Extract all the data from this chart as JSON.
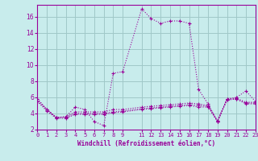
{
  "xlabel": "Windchill (Refroidissement éolien,°C)",
  "bg_color": "#c8ecec",
  "grid_color": "#a0c8c8",
  "line_color": "#990099",
  "xlim": [
    0,
    23
  ],
  "ylim": [
    2,
    17.5
  ],
  "yticks": [
    2,
    4,
    6,
    8,
    10,
    12,
    14,
    16
  ],
  "xtick_positions": [
    0,
    1,
    2,
    3,
    4,
    5,
    6,
    7,
    8,
    9,
    11,
    12,
    13,
    14,
    15,
    16,
    17,
    18,
    19,
    20,
    21,
    22,
    23
  ],
  "xtick_labels": [
    "0",
    "1",
    "2",
    "3",
    "4",
    "5",
    "6",
    "7",
    "8",
    "9",
    "11",
    "12",
    "13",
    "14",
    "15",
    "16",
    "17",
    "18",
    "19",
    "20",
    "21",
    "22",
    "23"
  ],
  "series": [
    {
      "x": [
        0,
        1,
        2,
        3,
        4,
        5,
        6,
        7,
        8,
        9,
        11,
        12,
        13,
        14,
        15,
        16,
        17,
        18,
        19,
        20,
        21,
        22,
        23
      ],
      "y": [
        5.8,
        4.5,
        3.5,
        3.6,
        4.8,
        4.5,
        3.0,
        2.5,
        9.0,
        9.2,
        17.0,
        15.8,
        15.2,
        15.5,
        15.5,
        15.2,
        7.0,
        5.2,
        3.0,
        5.8,
        6.0,
        6.8,
        5.5
      ]
    },
    {
      "x": [
        0,
        1,
        2,
        3,
        4,
        5,
        6,
        7,
        8,
        9,
        11,
        12,
        13,
        14,
        15,
        16,
        17,
        18,
        19,
        20,
        21,
        22,
        23
      ],
      "y": [
        5.8,
        4.5,
        3.5,
        3.6,
        4.2,
        4.2,
        4.2,
        4.2,
        4.5,
        4.5,
        4.8,
        4.9,
        5.0,
        5.1,
        5.2,
        5.3,
        5.2,
        5.0,
        3.1,
        5.8,
        5.9,
        5.4,
        5.4
      ]
    },
    {
      "x": [
        0,
        1,
        2,
        3,
        4,
        5,
        6,
        7,
        8,
        9,
        11,
        12,
        13,
        14,
        15,
        16,
        17,
        18,
        19,
        20,
        21,
        22,
        23
      ],
      "y": [
        5.5,
        4.5,
        3.5,
        3.5,
        4.0,
        4.0,
        4.0,
        4.0,
        4.2,
        4.3,
        4.6,
        4.7,
        4.8,
        4.9,
        5.0,
        5.1,
        5.0,
        4.9,
        3.0,
        5.7,
        5.8,
        5.3,
        5.3
      ]
    },
    {
      "x": [
        0,
        1,
        2,
        3,
        4,
        5,
        6,
        7,
        8,
        9,
        11,
        12,
        13,
        14,
        15,
        16,
        17,
        18,
        19,
        20,
        21,
        22,
        23
      ],
      "y": [
        5.5,
        4.3,
        3.4,
        3.4,
        3.9,
        3.9,
        3.9,
        3.9,
        4.1,
        4.2,
        4.5,
        4.6,
        4.7,
        4.8,
        4.9,
        5.0,
        4.8,
        4.8,
        3.0,
        5.7,
        5.8,
        5.2,
        5.2
      ]
    }
  ]
}
